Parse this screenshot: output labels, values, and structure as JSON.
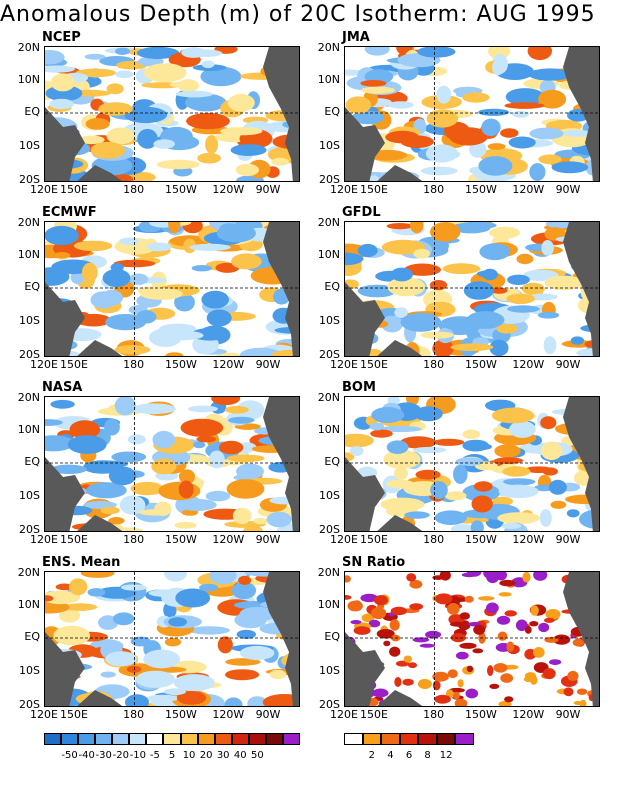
{
  "title": "Anomalous Depth (m) of 20C Isotherm: AUG 1995",
  "y_ticks": [
    "20N",
    "10N",
    "EQ",
    "10S",
    "20S"
  ],
  "x_ticks": [
    "120E",
    "150E",
    "180",
    "150W",
    "120W",
    "90W"
  ],
  "chart_data": {
    "type": "heatmap",
    "title": "Anomalous Depth (m) of 20C Isotherm: AUG 1995",
    "panels": [
      {
        "name": "NCEP",
        "field": "anomaly"
      },
      {
        "name": "JMA",
        "field": "anomaly"
      },
      {
        "name": "ECMWF",
        "field": "anomaly"
      },
      {
        "name": "GFDL",
        "field": "anomaly"
      },
      {
        "name": "NASA",
        "field": "anomaly"
      },
      {
        "name": "BOM",
        "field": "anomaly"
      },
      {
        "name": "ENS. Mean",
        "field": "anomaly"
      },
      {
        "name": "SN Ratio",
        "field": "ratio"
      }
    ],
    "x_range": [
      "120E",
      "70W"
    ],
    "y_range": [
      "20S",
      "20N"
    ],
    "grid": "dashed lines at EQ and 180",
    "anomaly_legend": {
      "labels": [
        "-50",
        "-40",
        "-30",
        "-20",
        "-10",
        "-5",
        "5",
        "10",
        "20",
        "30",
        "40",
        "50"
      ],
      "colors": [
        "#1e6ec8",
        "#2f86de",
        "#4a9ce8",
        "#6fb4f0",
        "#9cccf7",
        "#c8e6fb",
        "#ffffff",
        "#fde89a",
        "#fcc34a",
        "#f79b1e",
        "#ef5a13",
        "#d6250f",
        "#a8100b",
        "#7a0a0a",
        "#9a1fc8"
      ]
    },
    "ratio_legend": {
      "labels": [
        "2",
        "4",
        "6",
        "8",
        "12"
      ],
      "colors": [
        "#ffffff",
        "#f7a01b",
        "#f06a16",
        "#e23012",
        "#b8120b",
        "#7a0a0a",
        "#9a1fc8"
      ]
    }
  }
}
